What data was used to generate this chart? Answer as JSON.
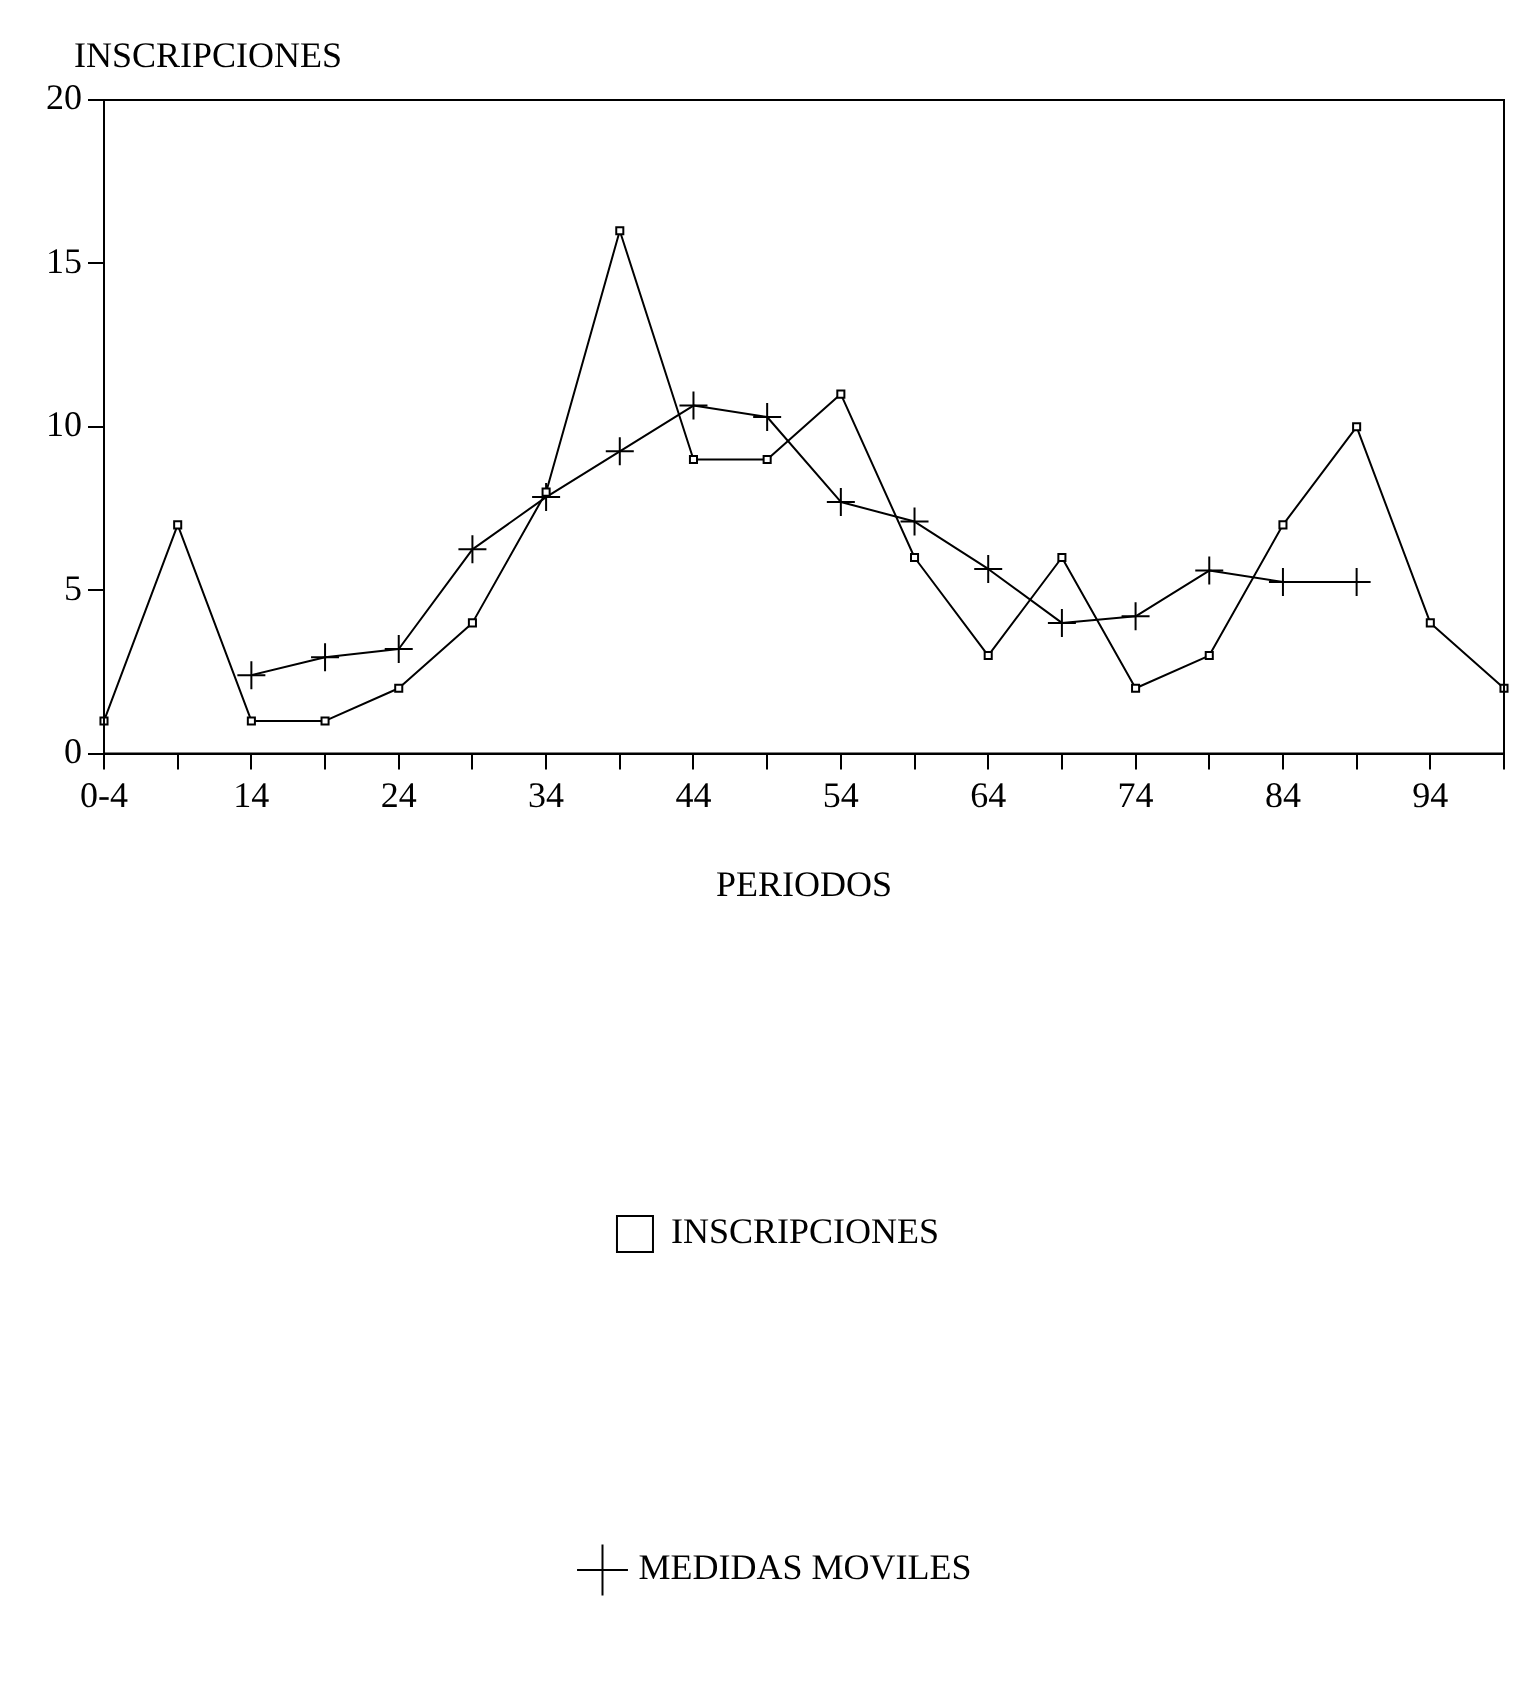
{
  "chart_data": {
    "type": "line",
    "ylabel": "INSCRIPCIONES",
    "xlabel": "PERIODOS",
    "categories": [
      "0-4",
      null,
      "14",
      null,
      "24",
      null,
      "34",
      null,
      "44",
      null,
      "54",
      null,
      "64",
      null,
      "74",
      null,
      "84",
      null,
      "94",
      null
    ],
    "ylim": [
      0,
      20
    ],
    "yticks": [
      0,
      5,
      10,
      15,
      20
    ],
    "grid": false,
    "legend": "bottom",
    "series": [
      {
        "name": "INSCRIPCIONES",
        "color": "#000000",
        "marker": "square",
        "values": [
          1,
          7,
          1,
          1,
          2,
          4,
          8,
          16,
          9,
          9,
          11,
          6,
          3,
          6,
          2,
          3,
          7,
          10,
          4,
          2
        ]
      },
      {
        "name": "MEDIDAS MOVILES",
        "color": "#000000",
        "marker": "cross",
        "values": [
          null,
          null,
          2.4,
          2.95,
          3.2,
          6.25,
          7.85,
          9.25,
          10.65,
          10.3,
          7.7,
          7.1,
          5.65,
          4.0,
          4.2,
          5.6,
          5.25,
          5.25,
          null,
          null
        ]
      }
    ]
  }
}
